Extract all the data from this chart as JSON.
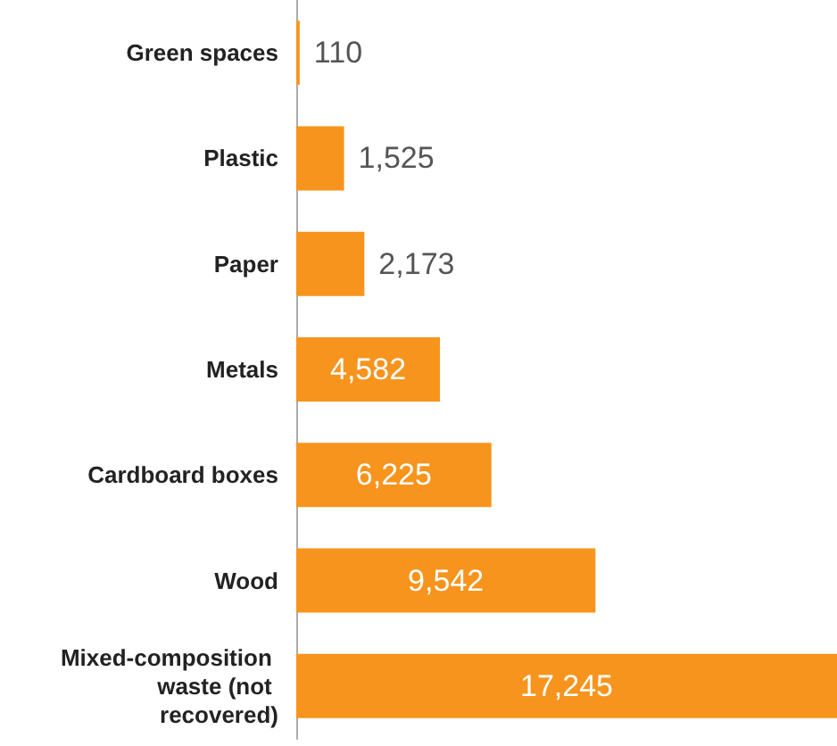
{
  "chart_data": {
    "type": "bar",
    "orientation": "horizontal",
    "categories": [
      "Green spaces",
      "Plastic",
      "Paper",
      "Metals",
      "Cardboard boxes",
      "Wood",
      "Mixed-composition waste (not recovered)"
    ],
    "values": [
      110,
      1525,
      2173,
      4582,
      6225,
      9542,
      17245
    ],
    "value_labels": [
      "110",
      "1,525",
      "2,173",
      "4,582",
      "6,225",
      "9,542",
      "17,245"
    ],
    "color": "#f7941d"
  }
}
